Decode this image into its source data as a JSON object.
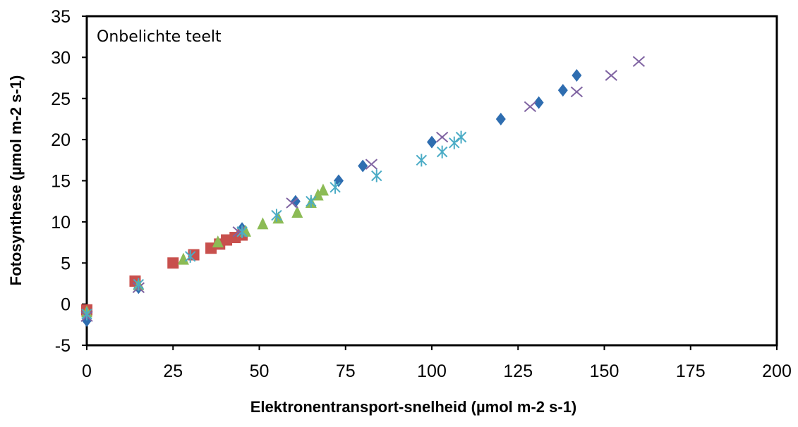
{
  "chart_data": {
    "type": "scatter",
    "title": "",
    "annotation": "Onbelichte teelt",
    "xlabel": "Elektronentransport-snelheid (µmol m-2 s-1)",
    "ylabel": "Fotosynthese (µmol m-2 s-1)",
    "xlim": [
      0,
      200
    ],
    "ylim": [
      -5,
      35
    ],
    "x_ticks": [
      "0",
      "25",
      "50",
      "75",
      "100",
      "125",
      "150",
      "175",
      "200"
    ],
    "y_ticks": [
      "-5",
      "0",
      "5",
      "10",
      "15",
      "20",
      "25",
      "30",
      "35"
    ],
    "grid": false,
    "legend": "none",
    "series": [
      {
        "marker": "diamond",
        "color": "#2e6db0",
        "points": [
          [
            0,
            -2
          ],
          [
            15,
            2
          ],
          [
            45,
            9.2
          ],
          [
            60.5,
            12.5
          ],
          [
            73,
            15
          ],
          [
            80,
            16.8
          ],
          [
            100,
            19.7
          ],
          [
            120,
            22.5
          ],
          [
            131,
            24.5
          ],
          [
            138,
            26
          ],
          [
            142,
            27.8
          ]
        ]
      },
      {
        "marker": "square",
        "color": "#c8504d",
        "points": [
          [
            0,
            -0.7
          ],
          [
            14,
            2.8
          ],
          [
            25,
            5
          ],
          [
            31,
            6
          ],
          [
            36,
            6.8
          ],
          [
            38.5,
            7.3
          ],
          [
            40.5,
            7.8
          ],
          [
            43,
            8.1
          ],
          [
            45,
            8.4
          ]
        ]
      },
      {
        "marker": "triangle",
        "color": "#8cbb55",
        "points": [
          [
            0,
            -1
          ],
          [
            15,
            2.3
          ],
          [
            28,
            5.4
          ],
          [
            38,
            7.5
          ],
          [
            46,
            8.8
          ],
          [
            51,
            9.7
          ],
          [
            55.5,
            10.4
          ],
          [
            61,
            11.1
          ],
          [
            65,
            12.3
          ],
          [
            67,
            13.2
          ],
          [
            68.5,
            13.8
          ]
        ]
      },
      {
        "marker": "x",
        "color": "#8064a2",
        "points": [
          [
            0,
            -1.5
          ],
          [
            15,
            2
          ],
          [
            44,
            8.8
          ],
          [
            59.5,
            12.3
          ],
          [
            82.5,
            17
          ],
          [
            103,
            20.3
          ],
          [
            128.5,
            24
          ],
          [
            142,
            25.8
          ],
          [
            152,
            27.8
          ],
          [
            160,
            29.5
          ]
        ]
      },
      {
        "marker": "asterisk",
        "color": "#4bacc6",
        "points": [
          [
            0,
            -1.2
          ],
          [
            15,
            2.4
          ],
          [
            30,
            5.8
          ],
          [
            45,
            8.8
          ],
          [
            55,
            10.8
          ],
          [
            65,
            12.5
          ],
          [
            72,
            14.2
          ],
          [
            84,
            15.6
          ],
          [
            97,
            17.5
          ],
          [
            103,
            18.5
          ],
          [
            106.5,
            19.6
          ],
          [
            108.5,
            20.3
          ]
        ]
      }
    ]
  }
}
